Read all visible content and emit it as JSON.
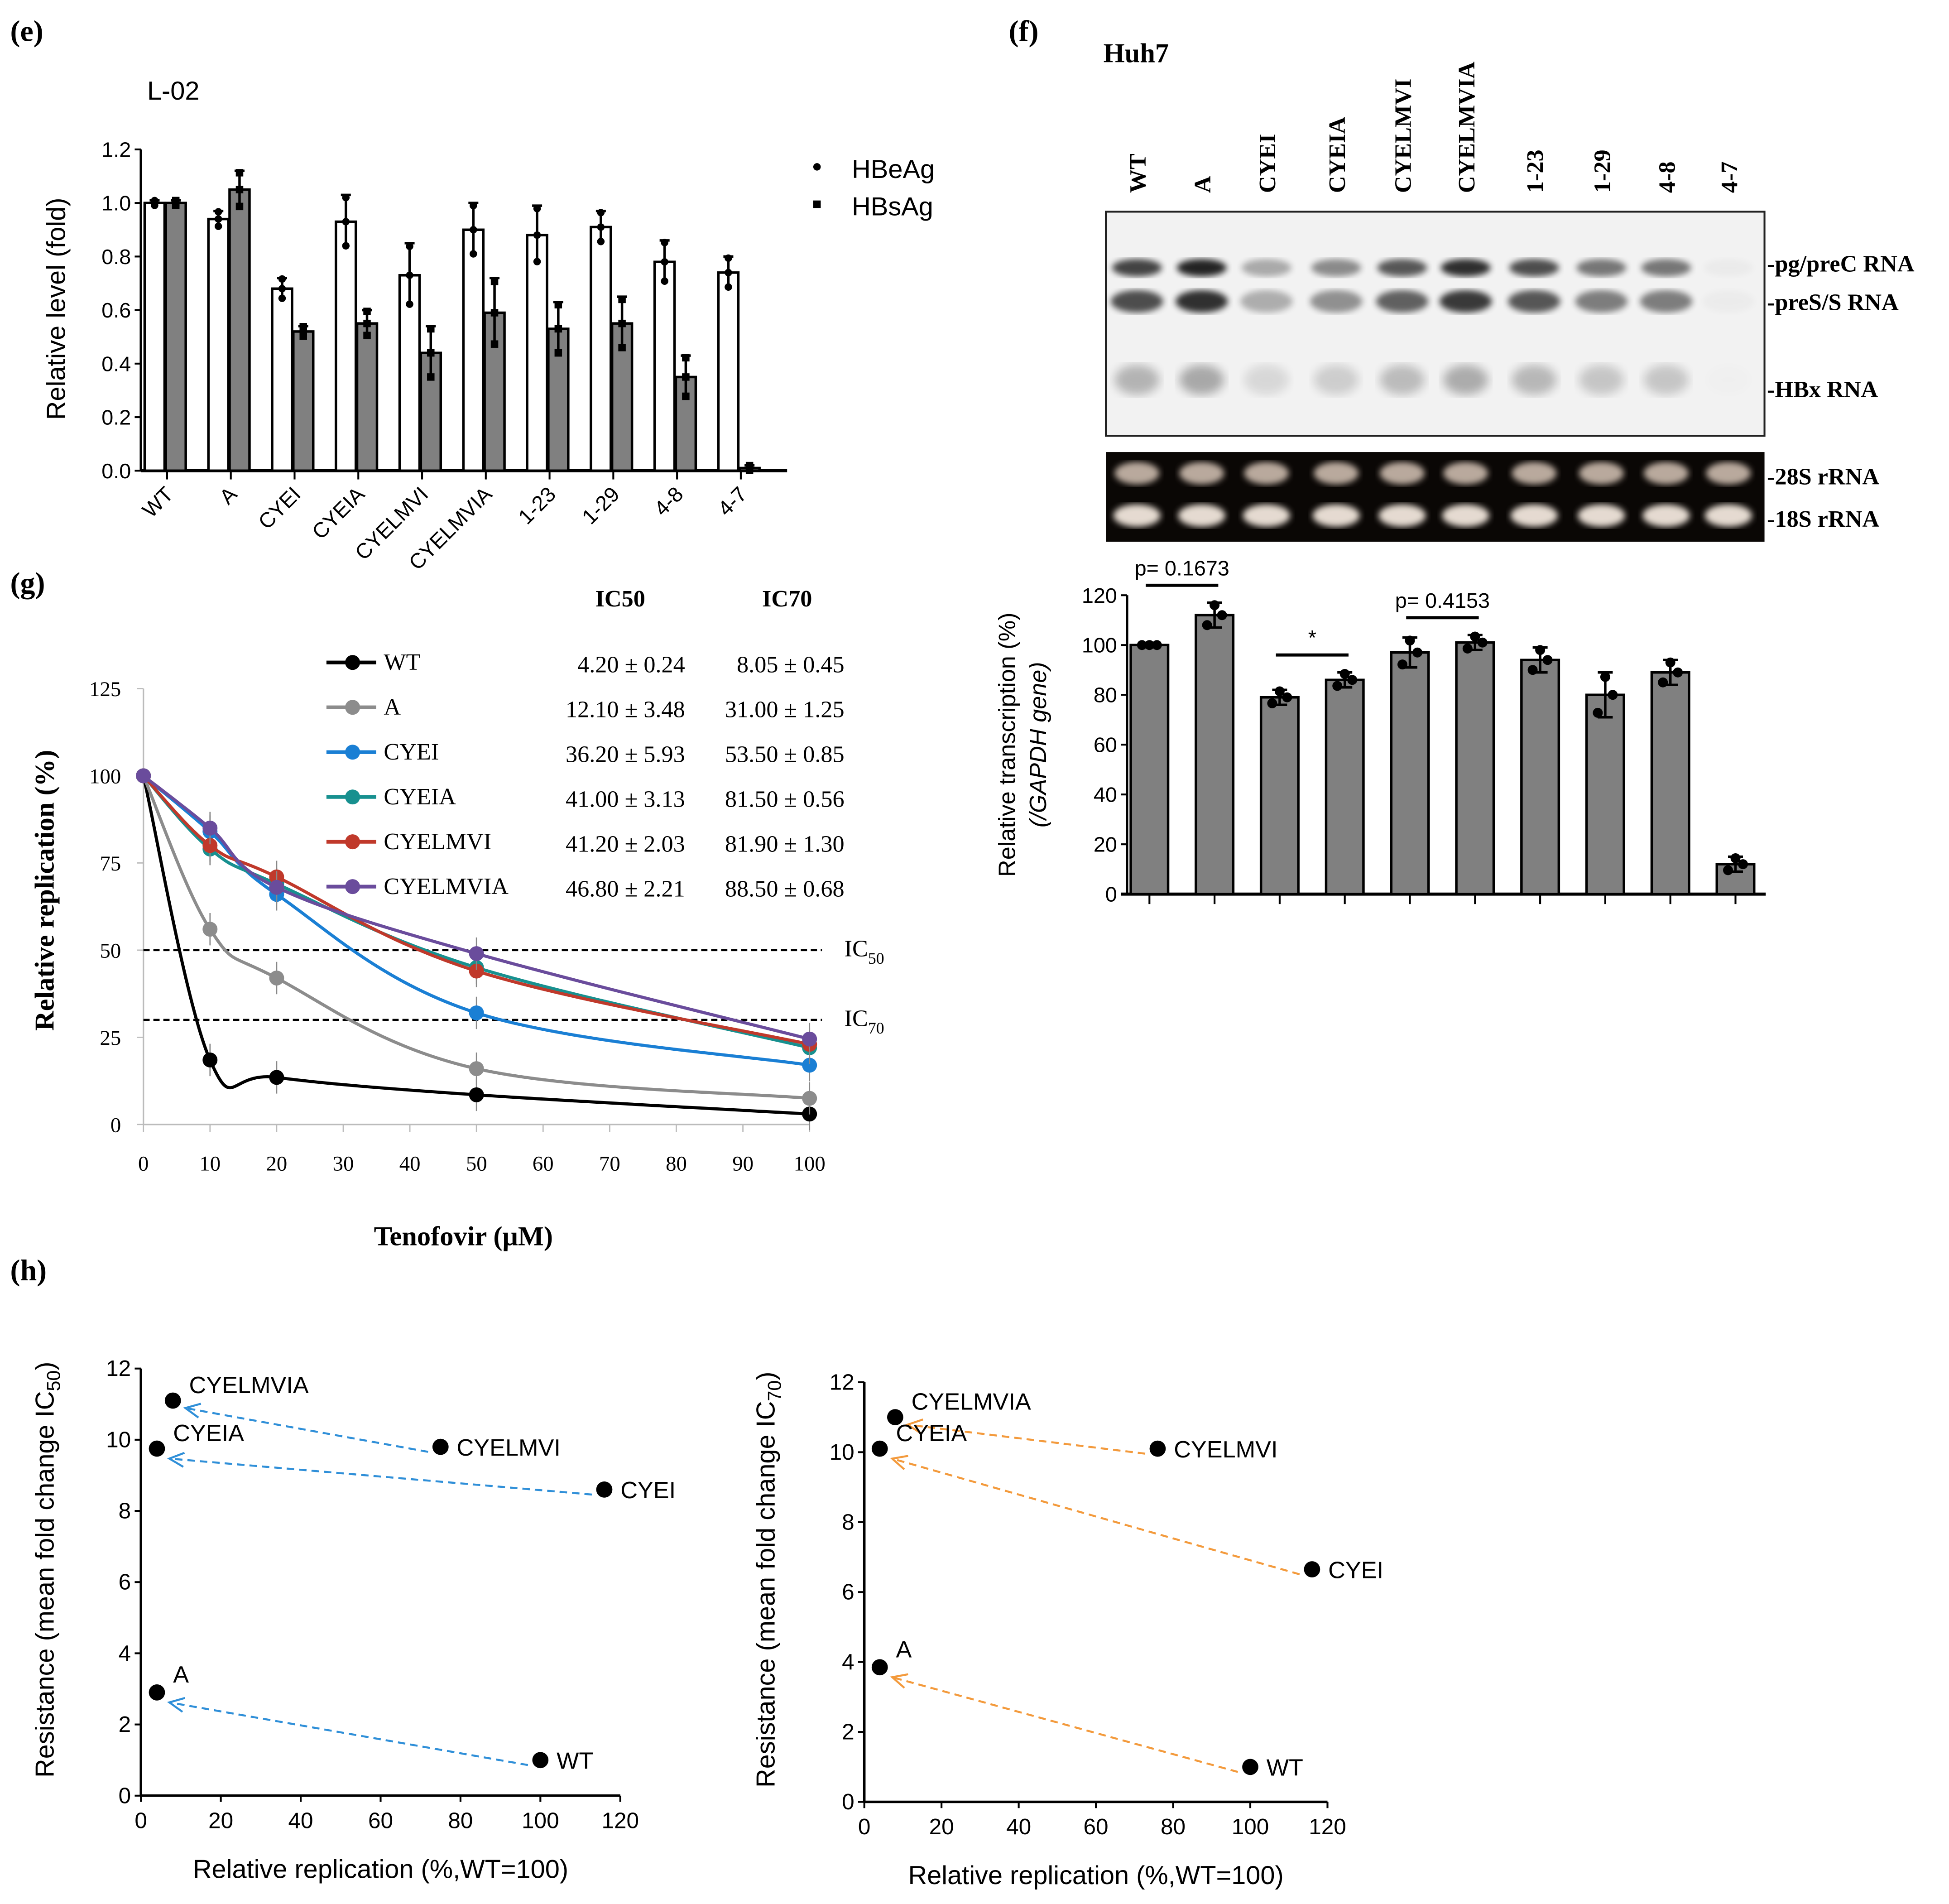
{
  "panels": {
    "e": "(e)",
    "f": "(f)",
    "g": "(g)",
    "h": "(h)"
  },
  "chart_data": [
    {
      "id": "e",
      "type": "bar",
      "title": "L-02",
      "categories": [
        "WT",
        "A",
        "CYEI",
        "CYEIA",
        "CYELMVI",
        "CYELMVIA",
        "1-23",
        "1-29",
        "4-8",
        "4-7"
      ],
      "series": [
        {
          "name": "HBeAg",
          "color": "#ffffff",
          "values": [
            1.0,
            0.94,
            0.68,
            0.93,
            0.73,
            0.9,
            0.88,
            0.91,
            0.78,
            0.74
          ],
          "errors": [
            0.01,
            0.03,
            0.04,
            0.1,
            0.12,
            0.1,
            0.11,
            0.06,
            0.08,
            0.06
          ]
        },
        {
          "name": "HBsAg",
          "color": "#808080",
          "values": [
            1.0,
            1.05,
            0.52,
            0.55,
            0.44,
            0.59,
            0.53,
            0.55,
            0.35,
            0.01
          ],
          "errors": [
            0.01,
            0.07,
            0.02,
            0.05,
            0.1,
            0.13,
            0.1,
            0.1,
            0.08,
            0.01
          ]
        }
      ],
      "ylabel": "Relative level (fold)",
      "ylim": [
        0,
        1.2
      ],
      "yticks": [
        "0.0",
        "0.2",
        "0.4",
        "0.6",
        "0.8",
        "1.0",
        "1.2"
      ],
      "legend": "right"
    },
    {
      "id": "f_blot",
      "type": "table",
      "title": "Huh7",
      "lanes": [
        "WT",
        "A",
        "CYEI",
        "CYEIA",
        "CYELMVI",
        "CYELMVIA",
        "1-23",
        "1-29",
        "4-8",
        "4-7"
      ],
      "band_intensity": [
        0.85,
        1.0,
        0.35,
        0.5,
        0.75,
        0.95,
        0.8,
        0.6,
        0.6,
        0.03
      ],
      "bands": [
        "-pg/preC RNA",
        "-preS/S RNA",
        "-HBx RNA"
      ],
      "rrna_bands": [
        "-28S rRNA",
        "-18S rRNA"
      ]
    },
    {
      "id": "f_bar",
      "type": "bar",
      "categories": [
        "WT",
        "A",
        "CYEI",
        "CYEIA",
        "CYELMVI",
        "CYELMVIA",
        "1-23",
        "1-29",
        "4-8",
        "4-7"
      ],
      "values": [
        100,
        112,
        79,
        86,
        97,
        101,
        94,
        80,
        89,
        12
      ],
      "errors": [
        0,
        5,
        3,
        3,
        6,
        3,
        5,
        9,
        5,
        3
      ],
      "ylabel": "Relative transcription (%)",
      "ylabel2": "(/GAPDH gene)",
      "ylim": [
        0,
        120
      ],
      "yticks": [
        "0",
        "20",
        "40",
        "60",
        "80",
        "100",
        "120"
      ],
      "annotations": [
        {
          "text": "p= 0.1673",
          "between": [
            0,
            1
          ]
        },
        {
          "text": "*",
          "between": [
            2,
            3
          ]
        },
        {
          "text": "p= 0.4153",
          "between": [
            4,
            5
          ]
        }
      ]
    },
    {
      "id": "g",
      "type": "line",
      "x": [
        0,
        10,
        20,
        50,
        100
      ],
      "series": [
        {
          "name": "WT",
          "color": "#000000",
          "values": [
            100,
            18.5,
            13.5,
            8.5,
            3
          ],
          "ic50": "4.20 ± 0.24",
          "ic70": "8.05 ± 0.45"
        },
        {
          "name": "A",
          "color": "#8c8c8c",
          "values": [
            100,
            56,
            42,
            16,
            7.5
          ],
          "ic50": "12.10 ± 3.48",
          "ic70": "31.00 ± 1.25"
        },
        {
          "name": "CYEI",
          "color": "#1a7fd4",
          "values": [
            100,
            84,
            66,
            32,
            17
          ],
          "ic50": "36.20 ± 5.93",
          "ic70": "53.50 ± 0.85"
        },
        {
          "name": "CYEIA",
          "color": "#17908f",
          "values": [
            100,
            79,
            69,
            45,
            22
          ],
          "ic50": "41.00 ± 3.13",
          "ic70": "81.50 ± 0.56"
        },
        {
          "name": "CYELMVI",
          "color": "#c0392b",
          "values": [
            100,
            80,
            71,
            44,
            23
          ],
          "ic50": "41.20 ± 2.03",
          "ic70": "81.90 ± 1.30"
        },
        {
          "name": "CYELMVIA",
          "color": "#6a4c9c",
          "values": [
            100,
            85,
            68,
            49,
            24.5
          ],
          "ic50": "46.80 ± 2.21",
          "ic70": "88.50 ± 0.68"
        }
      ],
      "col_ic50": "IC50",
      "col_ic70": "IC70",
      "ref_lines": [
        {
          "y": 50,
          "label": "IC",
          "sub": "50"
        },
        {
          "y": 30,
          "label": "IC",
          "sub": "70"
        }
      ],
      "xlabel": "Tenofovir (μM)",
      "ylabel": "Relative replication (%)",
      "xlim": [
        0,
        100
      ],
      "ylim": [
        0,
        125
      ],
      "xticks": [
        "0",
        "10",
        "20",
        "30",
        "40",
        "50",
        "60",
        "70",
        "80",
        "90",
        "100"
      ],
      "yticks": [
        "0",
        "25",
        "50",
        "75",
        "100",
        "125"
      ]
    },
    {
      "id": "h_left",
      "type": "scatter",
      "arrow_color": "#2f8fd8",
      "points": [
        {
          "label": "WT",
          "x": 100,
          "y": 1.0
        },
        {
          "label": "A",
          "x": 4,
          "y": 2.9
        },
        {
          "label": "CYEI",
          "x": 116,
          "y": 8.6
        },
        {
          "label": "CYELMVI",
          "x": 75,
          "y": 9.8
        },
        {
          "label": "CYEIA",
          "x": 4,
          "y": 9.75
        },
        {
          "label": "CYELMVIA",
          "x": 8,
          "y": 11.1
        }
      ],
      "arrows": [
        [
          "WT",
          "A"
        ],
        [
          "CYEI",
          "CYEIA"
        ],
        [
          "CYELMVI",
          "CYELMVIA"
        ]
      ],
      "xlabel": "Relative replication (%,WT=100)",
      "ylabel": "Resistance (mean fold change IC",
      "ylabel_sub": "50",
      "ylabel_end": ")",
      "xlim": [
        0,
        120
      ],
      "ylim": [
        0,
        12
      ],
      "xticks": [
        "0",
        "20",
        "40",
        "60",
        "80",
        "100",
        "120"
      ],
      "yticks": [
        "0",
        "2",
        "4",
        "6",
        "8",
        "10",
        "12"
      ]
    },
    {
      "id": "h_right",
      "type": "scatter",
      "arrow_color": "#f39a3c",
      "points": [
        {
          "label": "WT",
          "x": 100,
          "y": 1.0
        },
        {
          "label": "A",
          "x": 4,
          "y": 3.85
        },
        {
          "label": "CYEI",
          "x": 116,
          "y": 6.65
        },
        {
          "label": "CYELMVI",
          "x": 76,
          "y": 10.1
        },
        {
          "label": "CYEIA",
          "x": 4,
          "y": 10.1
        },
        {
          "label": "CYELMVIA",
          "x": 8,
          "y": 11.0
        }
      ],
      "arrows": [
        [
          "WT",
          "A"
        ],
        [
          "CYEI",
          "CYEIA"
        ],
        [
          "CYELMVI",
          "CYELMVIA"
        ]
      ],
      "xlabel": "Relative replication (%,WT=100)",
      "ylabel": "Resistance (mean fold change IC",
      "ylabel_sub": "70",
      "ylabel_end": ")",
      "xlim": [
        0,
        120
      ],
      "ylim": [
        0,
        12
      ],
      "xticks": [
        "0",
        "20",
        "40",
        "60",
        "80",
        "100",
        "120"
      ],
      "yticks": [
        "0",
        "2",
        "4",
        "6",
        "8",
        "10",
        "12"
      ]
    }
  ]
}
